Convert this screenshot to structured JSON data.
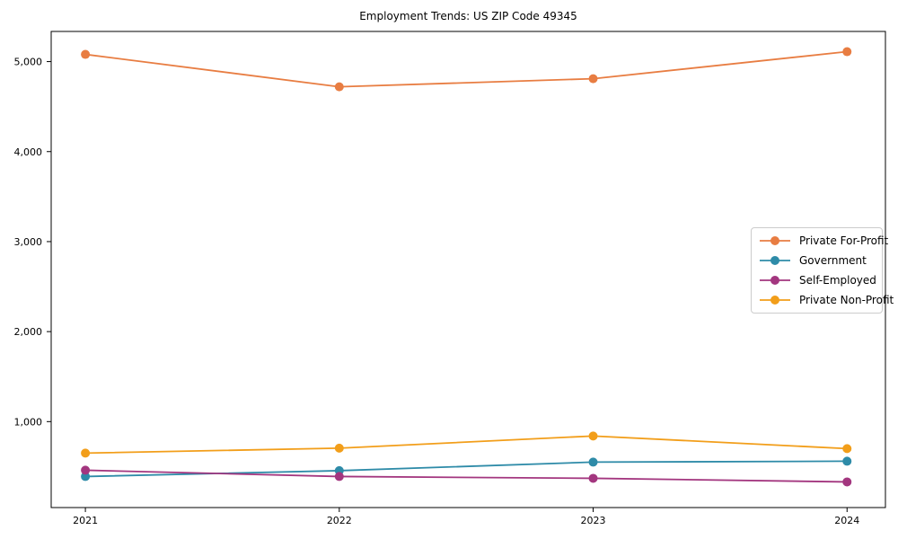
{
  "figure": {
    "title": "Employment Trends: US ZIP Code 49345",
    "background_color": "#ffffff",
    "frame_color": "#000000"
  },
  "chart_data": {
    "type": "line",
    "title": "Employment Trends: US ZIP Code 49345",
    "xlabel": "",
    "ylabel": "",
    "x": [
      2021,
      2022,
      2023,
      2024
    ],
    "x_tick_labels": [
      "2021",
      "2022",
      "2023",
      "2024"
    ],
    "series": [
      {
        "name": "Private For-Profit",
        "color": "#E87D42",
        "values": [
          5080,
          4720,
          4810,
          5110
        ]
      },
      {
        "name": "Government",
        "color": "#2E8BA8",
        "values": [
          390,
          455,
          550,
          560
        ]
      },
      {
        "name": "Self-Employed",
        "color": "#A3367F",
        "values": [
          460,
          390,
          370,
          330
        ]
      },
      {
        "name": "Private Non-Profit",
        "color": "#F29E1A",
        "values": [
          650,
          705,
          840,
          700
        ]
      }
    ],
    "y_ticks": [
      1000,
      2000,
      3000,
      4000,
      5000
    ],
    "y_tick_labels": [
      "1,000",
      "2,000",
      "3,000",
      "4,000",
      "5,000"
    ],
    "ylim": [
      45,
      5335
    ],
    "grid": false,
    "frame": true,
    "marker": "circle",
    "legend_position": "right-center"
  }
}
